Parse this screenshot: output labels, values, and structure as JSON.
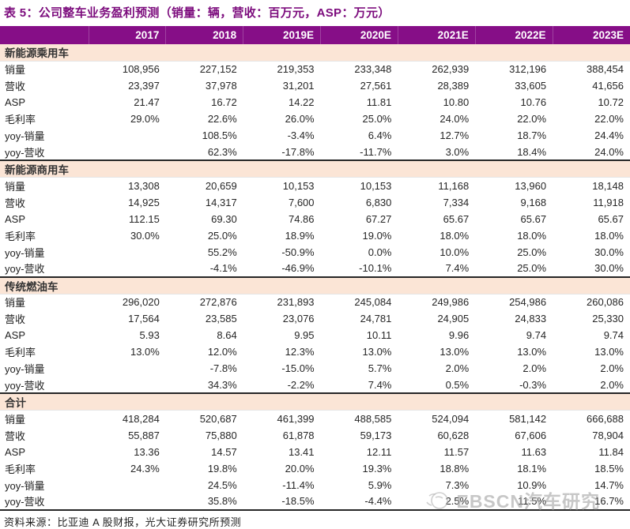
{
  "title": "表 5：公司整车业务盈利预测（销量：辆，营收：百万元，ASP：万元）",
  "columns": [
    "2017",
    "2018",
    "2019E",
    "2020E",
    "2021E",
    "2022E",
    "2023E"
  ],
  "sections": [
    {
      "name": "新能源乘用车",
      "rows": [
        {
          "label": "销量",
          "values": [
            "108,956",
            "227,152",
            "219,353",
            "233,348",
            "262,939",
            "312,196",
            "388,454"
          ]
        },
        {
          "label": "营收",
          "values": [
            "23,397",
            "37,978",
            "31,201",
            "27,561",
            "28,389",
            "33,605",
            "41,656"
          ]
        },
        {
          "label": "ASP",
          "values": [
            "21.47",
            "16.72",
            "14.22",
            "11.81",
            "10.80",
            "10.76",
            "10.72"
          ]
        },
        {
          "label": "毛利率",
          "values": [
            "29.0%",
            "22.6%",
            "26.0%",
            "25.0%",
            "24.0%",
            "22.0%",
            "22.0%"
          ]
        },
        {
          "label": "yoy-销量",
          "values": [
            "",
            "108.5%",
            "-3.4%",
            "6.4%",
            "12.7%",
            "18.7%",
            "24.4%"
          ]
        },
        {
          "label": "yoy-营收",
          "values": [
            "",
            "62.3%",
            "-17.8%",
            "-11.7%",
            "3.0%",
            "18.4%",
            "24.0%"
          ]
        }
      ]
    },
    {
      "name": "新能源商用车",
      "rows": [
        {
          "label": "销量",
          "values": [
            "13,308",
            "20,659",
            "10,153",
            "10,153",
            "11,168",
            "13,960",
            "18,148"
          ]
        },
        {
          "label": "营收",
          "values": [
            "14,925",
            "14,317",
            "7,600",
            "6,830",
            "7,334",
            "9,168",
            "11,918"
          ]
        },
        {
          "label": "ASP",
          "values": [
            "112.15",
            "69.30",
            "74.86",
            "67.27",
            "65.67",
            "65.67",
            "65.67"
          ]
        },
        {
          "label": "毛利率",
          "values": [
            "30.0%",
            "25.0%",
            "18.9%",
            "19.0%",
            "18.0%",
            "18.0%",
            "18.0%"
          ]
        },
        {
          "label": "yoy-销量",
          "values": [
            "",
            "55.2%",
            "-50.9%",
            "0.0%",
            "10.0%",
            "25.0%",
            "30.0%"
          ]
        },
        {
          "label": "yoy-营收",
          "values": [
            "",
            "-4.1%",
            "-46.9%",
            "-10.1%",
            "7.4%",
            "25.0%",
            "30.0%"
          ]
        }
      ]
    },
    {
      "name": "传统燃油车",
      "rows": [
        {
          "label": "销量",
          "values": [
            "296,020",
            "272,876",
            "231,893",
            "245,084",
            "249,986",
            "254,986",
            "260,086"
          ]
        },
        {
          "label": "营收",
          "values": [
            "17,564",
            "23,585",
            "23,076",
            "24,781",
            "24,905",
            "24,833",
            "25,330"
          ]
        },
        {
          "label": "ASP",
          "values": [
            "5.93",
            "8.64",
            "9.95",
            "10.11",
            "9.96",
            "9.74",
            "9.74"
          ]
        },
        {
          "label": "毛利率",
          "values": [
            "13.0%",
            "12.0%",
            "12.3%",
            "13.0%",
            "13.0%",
            "13.0%",
            "13.0%"
          ]
        },
        {
          "label": "yoy-销量",
          "values": [
            "",
            "-7.8%",
            "-15.0%",
            "5.7%",
            "2.0%",
            "2.0%",
            "2.0%"
          ]
        },
        {
          "label": "yoy-营收",
          "values": [
            "",
            "34.3%",
            "-2.2%",
            "7.4%",
            "0.5%",
            "-0.3%",
            "2.0%"
          ]
        }
      ]
    },
    {
      "name": "合计",
      "rows": [
        {
          "label": "销量",
          "values": [
            "418,284",
            "520,687",
            "461,399",
            "488,585",
            "524,094",
            "581,142",
            "666,688"
          ]
        },
        {
          "label": "营收",
          "values": [
            "55,887",
            "75,880",
            "61,878",
            "59,173",
            "60,628",
            "67,606",
            "78,904"
          ]
        },
        {
          "label": "ASP",
          "values": [
            "13.36",
            "14.57",
            "13.41",
            "12.11",
            "11.57",
            "11.63",
            "11.84"
          ]
        },
        {
          "label": "毛利率",
          "values": [
            "24.3%",
            "19.8%",
            "20.0%",
            "19.3%",
            "18.8%",
            "18.1%",
            "18.5%"
          ]
        },
        {
          "label": "yoy-销量",
          "values": [
            "",
            "24.5%",
            "-11.4%",
            "5.9%",
            "7.3%",
            "10.9%",
            "14.7%"
          ]
        },
        {
          "label": "yoy-营收",
          "values": [
            "",
            "35.8%",
            "-18.5%",
            "-4.4%",
            "2.5%",
            "11.5%",
            "16.7%"
          ]
        }
      ]
    }
  ],
  "source": "资料来源：比亚迪 A 股财报，光大证券研究所预测",
  "watermark": {
    "text": "EBSCN汽车研究",
    "logo": "ebscn-sun-logo"
  },
  "colors": {
    "header_bg": "#860E87",
    "section_bg": "#FBE5D6",
    "title_color": "#7C0C7D",
    "watermark_gray": "#A8A8A8"
  }
}
